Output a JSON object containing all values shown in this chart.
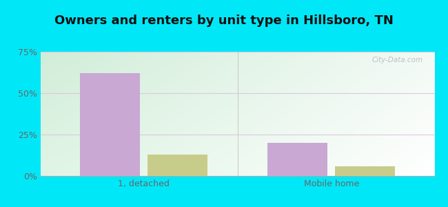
{
  "title": "Owners and renters by unit type in Hillsboro, TN",
  "categories": [
    "1, detached",
    "Mobile home"
  ],
  "owner_values": [
    62,
    20
  ],
  "renter_values": [
    13,
    6
  ],
  "owner_color": "#c9a8d4",
  "renter_color": "#c8cc8a",
  "bar_width": 0.32,
  "ylim": [
    0,
    75
  ],
  "yticks": [
    0,
    25,
    50,
    75
  ],
  "yticklabels": [
    "0%",
    "25%",
    "50%",
    "75%"
  ],
  "background_outer": "#00e8f8",
  "bg_gradient_colors": [
    "#d0edd8",
    "#f0faf0",
    "#ffffff"
  ],
  "grid_color": "#ddc8dd",
  "title_fontsize": 13,
  "tick_fontsize": 9,
  "legend_fontsize": 9,
  "watermark": "City-Data.com",
  "xlim": [
    -0.55,
    1.55
  ]
}
